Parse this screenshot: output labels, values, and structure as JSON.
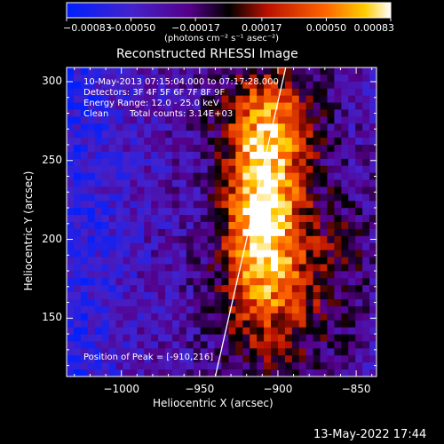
{
  "chart_data": {
    "type": "heatmap",
    "title": "Reconstructed RHESSI Image",
    "xlabel": "Heliocentric X (arcsec)",
    "ylabel": "Heliocentric Y (arcsec)",
    "xlim": [
      -1035,
      -837
    ],
    "ylim": [
      113,
      309
    ],
    "x_ticks": [
      -1000,
      -950,
      -900,
      -850
    ],
    "x_tick_labels": [
      "−1000",
      "−950",
      "−900",
      "−850"
    ],
    "y_ticks": [
      150,
      200,
      250,
      300
    ],
    "y_tick_labels": [
      "150",
      "200",
      "250",
      "300"
    ],
    "colorbar": {
      "range": [
        -0.00083,
        0.00083
      ],
      "ticks": [
        -0.00083,
        -0.0005,
        -0.00017,
        0.00017,
        0.0005,
        0.00083
      ],
      "tick_labels": [
        "−0.00083",
        "−0.00050",
        "−0.00017",
        "0.00017",
        "0.00050",
        "0.00083"
      ],
      "unit_label": "(photons cm⁻² s⁻¹ asec⁻²)",
      "colormap": "rainbow-blue-purple-red-yellow-white"
    },
    "info": {
      "date_time": "10-May-2013 07:15:04.000 to 07:17:28.000",
      "detectors": "Detectors: 3F 4F 5F 6F 7F 8F 9F",
      "energy_range": "Energy Range: 12.0 - 25.0 keV",
      "algorithm": "Clean",
      "total_counts": "Total counts: 3.14E+03"
    },
    "peak_label": "Position of Peak = [-910,216]",
    "peak_position": [
      -910,
      216
    ],
    "limb_line": {
      "x_bottom": -940,
      "x_top": -895
    },
    "grid": false
  },
  "footer_date": "13-May-2022 17:44"
}
